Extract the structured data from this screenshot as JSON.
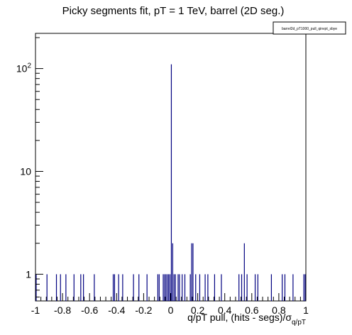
{
  "chart_data": {
    "type": "bar",
    "title": "Picky segments fit, pT = 1 TeV, barrel (2D seg.)",
    "legend_label": "barrel2d_pT1000_pull_qinvpt_sbye",
    "xlabel": "q/pT pull, (hits - segs)/σ",
    "xlabel_sub": "q/pT",
    "xlim": [
      -1,
      1
    ],
    "ylim": [
      0.55,
      220
    ],
    "y_scale": "log",
    "x_ticks": [
      -1,
      -0.8,
      -0.6,
      -0.4,
      -0.2,
      0,
      0.2,
      0.4,
      0.6,
      0.8,
      1
    ],
    "x_tick_labels": [
      "-1",
      "-0.8",
      "-0.6",
      "-0.4",
      "-0.2",
      "0",
      "0.2",
      "0.4",
      "0.6",
      "0.8",
      "1"
    ],
    "y_ticks": [
      1,
      10,
      100
    ],
    "y_tick_bases": [
      "1",
      "10",
      "10"
    ],
    "y_tick_exps": [
      "",
      "",
      "2"
    ],
    "bars": [
      {
        "x": -0.995,
        "y": 1
      },
      {
        "x": -0.915,
        "y": 1
      },
      {
        "x": -0.845,
        "y": 1
      },
      {
        "x": -0.815,
        "y": 1
      },
      {
        "x": -0.775,
        "y": 1
      },
      {
        "x": -0.715,
        "y": 1
      },
      {
        "x": -0.665,
        "y": 1
      },
      {
        "x": -0.645,
        "y": 1
      },
      {
        "x": -0.565,
        "y": 1
      },
      {
        "x": -0.425,
        "y": 1
      },
      {
        "x": -0.415,
        "y": 1
      },
      {
        "x": -0.385,
        "y": 1
      },
      {
        "x": -0.355,
        "y": 1
      },
      {
        "x": -0.275,
        "y": 1
      },
      {
        "x": -0.235,
        "y": 1
      },
      {
        "x": -0.175,
        "y": 1
      },
      {
        "x": -0.095,
        "y": 1
      },
      {
        "x": -0.085,
        "y": 1
      },
      {
        "x": -0.055,
        "y": 1
      },
      {
        "x": -0.045,
        "y": 1
      },
      {
        "x": -0.035,
        "y": 1
      },
      {
        "x": -0.025,
        "y": 1
      },
      {
        "x": -0.015,
        "y": 1
      },
      {
        "x": -0.005,
        "y": 1
      },
      {
        "x": 0.005,
        "y": 110
      },
      {
        "x": 0.015,
        "y": 2
      },
      {
        "x": 0.025,
        "y": 1
      },
      {
        "x": 0.035,
        "y": 1
      },
      {
        "x": 0.055,
        "y": 1
      },
      {
        "x": 0.065,
        "y": 1
      },
      {
        "x": 0.085,
        "y": 1
      },
      {
        "x": 0.105,
        "y": 1
      },
      {
        "x": 0.145,
        "y": 1
      },
      {
        "x": 0.155,
        "y": 2
      },
      {
        "x": 0.165,
        "y": 2
      },
      {
        "x": 0.185,
        "y": 1
      },
      {
        "x": 0.215,
        "y": 1
      },
      {
        "x": 0.255,
        "y": 1
      },
      {
        "x": 0.275,
        "y": 1
      },
      {
        "x": 0.325,
        "y": 1
      },
      {
        "x": 0.375,
        "y": 1
      },
      {
        "x": 0.505,
        "y": 1
      },
      {
        "x": 0.525,
        "y": 1
      },
      {
        "x": 0.545,
        "y": 2
      },
      {
        "x": 0.565,
        "y": 1
      },
      {
        "x": 0.625,
        "y": 1
      },
      {
        "x": 0.645,
        "y": 1
      },
      {
        "x": 0.745,
        "y": 1
      },
      {
        "x": 0.825,
        "y": 1
      },
      {
        "x": 0.845,
        "y": 1
      },
      {
        "x": 0.905,
        "y": 1
      },
      {
        "x": 0.985,
        "y": 1
      },
      {
        "x": 0.995,
        "y": 1
      }
    ],
    "bar_color": "#000080",
    "frame_color": "#000000",
    "grid": false,
    "legend_position": "top-right"
  }
}
